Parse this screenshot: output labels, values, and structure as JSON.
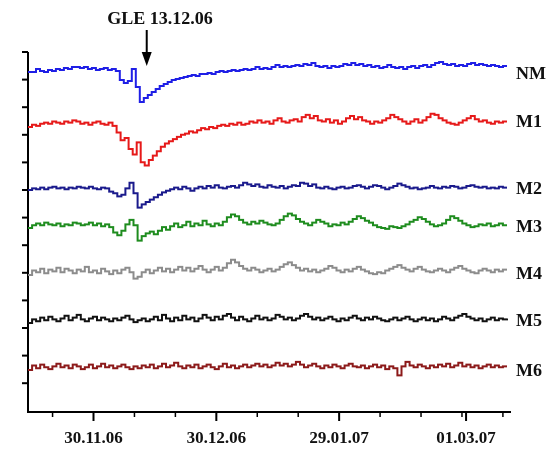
{
  "chart_data": {
    "type": "line",
    "title": "",
    "xlabel": "",
    "ylabel": "",
    "x_range": [
      "2006-11-14",
      "2007-03-11"
    ],
    "x_ticks": [
      {
        "date": "2006-11-30",
        "label": "30.11.06"
      },
      {
        "date": "2006-12-30",
        "label": "30.12.06"
      },
      {
        "date": "2007-01-29",
        "label": "29.01.07"
      },
      {
        "date": "2007-03-01",
        "label": "01.03.07"
      }
    ],
    "annotation": {
      "label": "GLE 13.12.06",
      "date": "2006-12-13"
    },
    "series": [
      {
        "name": "NM",
        "color": "#1f1fe6",
        "values": [
          0,
          0,
          0.3,
          0.1,
          0,
          0.2,
          0.1,
          0.3,
          0.2,
          0.4,
          0.3,
          0.5,
          0.5,
          0.4,
          0.5,
          0.3,
          0.4,
          0.2,
          0.3,
          0.4,
          0.2,
          0.3,
          0.1,
          -0.8,
          -1.1,
          -0.9,
          0.3,
          -1.5,
          -3,
          -2.6,
          -2.3,
          -2,
          -1.7,
          -1.4,
          -1.2,
          -1,
          -0.8,
          -0.7,
          -0.6,
          -0.5,
          -0.4,
          -0.3,
          -0.4,
          -0.2,
          -0.2,
          -0.1,
          -0.2,
          0,
          0.1,
          0,
          0.1,
          0.2,
          0.1,
          0.2,
          0.3,
          0.2,
          0.3,
          0.5,
          0.3,
          0.4,
          0.3,
          0.5,
          0.7,
          0.5,
          0.6,
          0.5,
          0.6,
          0.7,
          0.6,
          0.8,
          0.7,
          0.9,
          0.6,
          0.5,
          0.6,
          0.4,
          0.6,
          0.5,
          0.6,
          0.8,
          0.7,
          0.9,
          0.7,
          0.8,
          0.6,
          0.7,
          0.5,
          0.6,
          0.4,
          0.5,
          0.7,
          0.5,
          0.4,
          0.5,
          0.3,
          0.5,
          0.6,
          0.4,
          0.6,
          0.7,
          0.5,
          0.7,
          0.9,
          1,
          0.8,
          0.7,
          0.8,
          0.6,
          0.7,
          0.6,
          0.8,
          0.9,
          0.7,
          0.8,
          0.7,
          0.6,
          0.7,
          0.6,
          0.5,
          0.6,
          0.6
        ]
      },
      {
        "name": "M1",
        "color": "#e61919",
        "values": [
          0,
          0.2,
          0.1,
          0.3,
          0.4,
          0.3,
          0.5,
          0.4,
          0.3,
          0.5,
          0.4,
          0.6,
          0.5,
          0.3,
          0.4,
          0.2,
          0.4,
          0.5,
          0.3,
          0.2,
          0.4,
          0.1,
          -0.5,
          -1.2,
          -1,
          -2,
          -2.5,
          -1.4,
          -3.2,
          -3.5,
          -3,
          -2.6,
          -2.2,
          -1.8,
          -1.5,
          -1.3,
          -1.1,
          -0.9,
          -0.7,
          -0.6,
          -0.4,
          -0.5,
          -0.3,
          -0.1,
          -0.2,
          0,
          -0.1,
          0.1,
          0.2,
          0.1,
          0.3,
          0.2,
          0.4,
          0.2,
          0.3,
          0.5,
          0.4,
          0.6,
          0.4,
          0.5,
          0.3,
          0.6,
          0.8,
          0.5,
          0.4,
          0.6,
          0.7,
          0.5,
          0.9,
          1.1,
          0.8,
          1,
          0.6,
          0.5,
          0.7,
          0.4,
          0.6,
          0.3,
          0.5,
          0.8,
          1,
          0.7,
          0.9,
          0.6,
          0.5,
          0.3,
          0.5,
          0.4,
          0.6,
          0.8,
          1.1,
          0.9,
          0.7,
          0.5,
          0.3,
          0.5,
          0.7,
          0.4,
          0.6,
          0.9,
          1.2,
          1.1,
          0.8,
          0.6,
          0.4,
          0.3,
          0.2,
          0.4,
          0.6,
          0.8,
          1,
          0.7,
          0.5,
          0.6,
          0.4,
          0.3,
          0.5,
          0.4,
          0.5,
          0.5
        ]
      },
      {
        "name": "M2",
        "color": "#1a1a8c",
        "values": [
          0,
          0.2,
          0.1,
          0.3,
          0.1,
          0.3,
          0.4,
          0.2,
          0.3,
          0.1,
          0.3,
          0.2,
          0.4,
          0.3,
          0.2,
          0.4,
          0.2,
          0.1,
          0.3,
          0.2,
          -0.2,
          -0.4,
          -0.8,
          -0.6,
          0.2,
          0.9,
          -0.4,
          -2.2,
          -1.8,
          -1.5,
          -1.2,
          -0.9,
          -0.6,
          -0.3,
          -0.1,
          0.1,
          0.3,
          0.1,
          0.4,
          0.2,
          -0.1,
          0.2,
          0.4,
          0.2,
          0.5,
          0.3,
          0.6,
          0.3,
          0.2,
          0.4,
          0.5,
          0.3,
          0.6,
          0.9,
          0.7,
          0.5,
          0.7,
          0.4,
          0.3,
          0.6,
          0.4,
          0.3,
          0.5,
          0.2,
          0.4,
          0.6,
          0.5,
          0.9,
          0.8,
          0.5,
          0.7,
          0.3,
          0.2,
          0.4,
          0.2,
          0.1,
          0.3,
          0.4,
          0.2,
          0.3,
          0.5,
          0.6,
          0.4,
          0.2,
          0.4,
          0.6,
          0.5,
          0.3,
          0.1,
          0.3,
          0.5,
          0.8,
          0.6,
          0.4,
          0.2,
          0.3,
          0.1,
          0.2,
          0.3,
          0.5,
          0.3,
          0.2,
          0.4,
          0.3,
          0.5,
          0.4,
          0.2,
          0.3,
          0.5,
          0.6,
          0.4,
          0.3,
          0.4,
          0.2,
          0.3,
          0.2,
          0.4,
          0.3,
          0.3
        ]
      },
      {
        "name": "M3",
        "color": "#1e8c1e",
        "values": [
          0,
          0.3,
          0.5,
          0.3,
          0.6,
          0.4,
          0.3,
          0.5,
          0.2,
          0.4,
          0.3,
          0.6,
          0.5,
          0.3,
          0.4,
          0.6,
          0.3,
          0.5,
          0.2,
          0.4,
          0.1,
          -0.5,
          -0.8,
          -0.3,
          0.4,
          0.9,
          0.3,
          -1.4,
          -0.9,
          -0.6,
          -0.4,
          -0.7,
          -0.3,
          0.1,
          -0.2,
          0.2,
          0.5,
          0.1,
          0.3,
          0.7,
          0.2,
          0.5,
          0.3,
          0.8,
          0.4,
          0.2,
          0.5,
          0.3,
          0.7,
          1.2,
          1.5,
          1.3,
          0.9,
          0.6,
          0.4,
          0.7,
          0.5,
          0.8,
          0.6,
          0.4,
          0.3,
          0.5,
          0.9,
          1.3,
          1.6,
          1.4,
          1,
          0.7,
          0.5,
          0.3,
          0.6,
          0.9,
          0.7,
          0.5,
          0.2,
          0.4,
          0.3,
          0.6,
          0.4,
          0.7,
          1,
          1.3,
          1.1,
          0.8,
          0.6,
          0.3,
          0.1,
          0,
          -0.1,
          0.2,
          0.1,
          0,
          0.2,
          0.4,
          0.7,
          0.9,
          1.2,
          1,
          0.7,
          0.4,
          0.2,
          0.3,
          0.5,
          0.9,
          1.3,
          1.1,
          0.8,
          0.5,
          0.3,
          0.1,
          0.2,
          0.4,
          0.3,
          0.5,
          0.2,
          0.3,
          0.5,
          0.3,
          0.3
        ]
      },
      {
        "name": "M4",
        "color": "#8c8c8c",
        "values": [
          0,
          0.5,
          0.3,
          0.7,
          0.2,
          0.6,
          0.4,
          0.8,
          0.3,
          0.7,
          0.5,
          0.2,
          0.6,
          0.4,
          0.9,
          0.3,
          0.5,
          0.2,
          0.7,
          0.4,
          0.1,
          0.5,
          0.2,
          0.6,
          0.8,
          0.3,
          -0.4,
          -0.2,
          0.3,
          0.6,
          0.2,
          0.5,
          0.8,
          0.4,
          0.7,
          0.3,
          0.6,
          0.9,
          0.5,
          0.8,
          0.4,
          0.7,
          1,
          0.6,
          0.3,
          0.6,
          0.9,
          0.5,
          0.8,
          1.3,
          1.7,
          1.4,
          1,
          0.7,
          0.5,
          0.8,
          0.6,
          0.3,
          0.5,
          0.7,
          0.4,
          0.6,
          0.9,
          1.2,
          1.4,
          1.1,
          0.8,
          0.5,
          0.7,
          0.4,
          0.6,
          0.3,
          0.5,
          0.7,
          1,
          0.8,
          0.5,
          0.3,
          0.6,
          0.4,
          0.7,
          0.9,
          0.6,
          0.4,
          0.2,
          0.1,
          0.3,
          0.2,
          0.5,
          0.7,
          0.9,
          1.1,
          0.8,
          0.6,
          0.4,
          0.7,
          0.9,
          0.6,
          0.4,
          0.3,
          0.5,
          0.7,
          0.5,
          0.3,
          0.6,
          0.8,
          1,
          0.7,
          0.5,
          0.3,
          0.2,
          0.5,
          0.7,
          0.5,
          0.3,
          0.6,
          0.4,
          0.6,
          0.6
        ]
      },
      {
        "name": "M5",
        "color": "#111111",
        "values": [
          0,
          0.4,
          0.2,
          0.6,
          0.3,
          0.7,
          0.4,
          0.2,
          0.5,
          0.8,
          0.3,
          0.6,
          0.9,
          0.4,
          0.2,
          0.5,
          0.7,
          0.3,
          0.6,
          0.4,
          0.2,
          0.5,
          0.3,
          0.6,
          0.8,
          0.4,
          0.1,
          0.3,
          0.5,
          0.2,
          0.4,
          0.7,
          0.3,
          0.9,
          0.5,
          0.2,
          0.6,
          0.3,
          0.8,
          0.4,
          0.6,
          0.2,
          0.5,
          0.9,
          0.6,
          0.3,
          0.7,
          0.4,
          0.8,
          1,
          0.6,
          0.3,
          0.7,
          0.4,
          0.2,
          0.5,
          0.8,
          0.4,
          0.6,
          0.3,
          0.5,
          0.9,
          0.7,
          0.4,
          0.6,
          0.3,
          0.5,
          0.8,
          1,
          0.7,
          0.4,
          0.6,
          0.3,
          0.5,
          0.7,
          0.4,
          0.2,
          0.5,
          0.3,
          0.6,
          0.8,
          0.5,
          0.3,
          0.6,
          0.4,
          0.7,
          0.5,
          0.3,
          0.2,
          0.4,
          0.6,
          0.3,
          0.5,
          0.7,
          0.4,
          0.2,
          0.4,
          0.6,
          0.3,
          0.5,
          0.2,
          0.4,
          0.7,
          0.5,
          0.3,
          0.6,
          0.8,
          1,
          0.7,
          0.5,
          0.3,
          0.5,
          0.2,
          0.4,
          0.6,
          0.3,
          0.5,
          0.4,
          0.5
        ]
      },
      {
        "name": "M6",
        "color": "#8c1a1a",
        "values": [
          0,
          0.5,
          0.2,
          0.6,
          0.3,
          0.1,
          0.4,
          0.7,
          0.3,
          0.5,
          0.2,
          0.6,
          0.4,
          0.1,
          0.3,
          0.6,
          0.2,
          0.4,
          0.7,
          0.3,
          0.5,
          0.2,
          0.4,
          0.6,
          0.3,
          0.1,
          0.4,
          0.2,
          0.5,
          0.3,
          0.6,
          0.2,
          0.4,
          0.7,
          0.3,
          0.5,
          0.8,
          0.4,
          0.2,
          0.5,
          0.3,
          0.6,
          0.2,
          0.4,
          0.6,
          0.3,
          0.1,
          0.4,
          0.7,
          0.3,
          0.5,
          0.2,
          0.4,
          0.6,
          0.3,
          0.5,
          0.7,
          0.4,
          0.6,
          0.3,
          0.5,
          0.8,
          0.5,
          0.7,
          0.4,
          0.6,
          0.9,
          0.6,
          0.3,
          0.5,
          0.7,
          0.4,
          0.2,
          0.5,
          0.3,
          0.6,
          0.4,
          0.2,
          0.5,
          0.7,
          0.4,
          0.3,
          0.5,
          0.2,
          0.4,
          0.6,
          0.3,
          0.5,
          0.1,
          0.4,
          0.2,
          -0.6,
          0.4,
          0.9,
          0.5,
          0.3,
          0.6,
          0.4,
          0.2,
          0.5,
          0.3,
          0.6,
          0.4,
          0.7,
          0.3,
          0.5,
          0.8,
          0.4,
          0.6,
          0.3,
          0.5,
          0.2,
          0.4,
          0.6,
          0.3,
          0.5,
          0.3,
          0.4,
          0.4
        ]
      }
    ]
  }
}
